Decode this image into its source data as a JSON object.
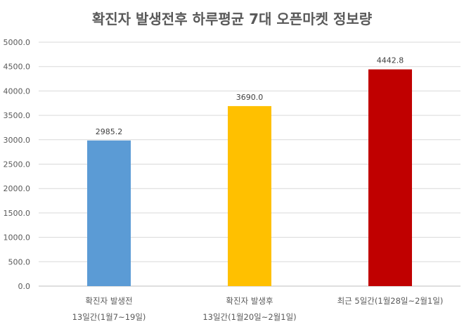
{
  "chart_data": {
    "type": "bar",
    "title": "확진자 발생전후 하루평균 7대 오픈마켓 정보량",
    "xlabel": "",
    "ylabel": "",
    "ylim": [
      0,
      5000
    ],
    "yticks": [
      "0.0",
      "500.0",
      "1000.0",
      "1500.0",
      "2000.0",
      "2500.0",
      "3000.0",
      "3500.0",
      "4000.0",
      "4500.0",
      "5000.0"
    ],
    "categories": [
      {
        "line1": "확진자 발생전",
        "line2": "13일간(1월7~19일)"
      },
      {
        "line1": "확진자 발생후",
        "line2": "13일간(1월20일~2월1일)"
      },
      {
        "line1": "최근 5일간(1월28일~2월1일)",
        "line2": ""
      }
    ],
    "values": [
      2985.2,
      3690.0,
      4442.8
    ],
    "value_labels": [
      "2985.2",
      "3690.0",
      "4442.8"
    ],
    "colors": [
      "#5b9bd5",
      "#ffc000",
      "#c00000"
    ],
    "grid": true,
    "legend": "none"
  }
}
